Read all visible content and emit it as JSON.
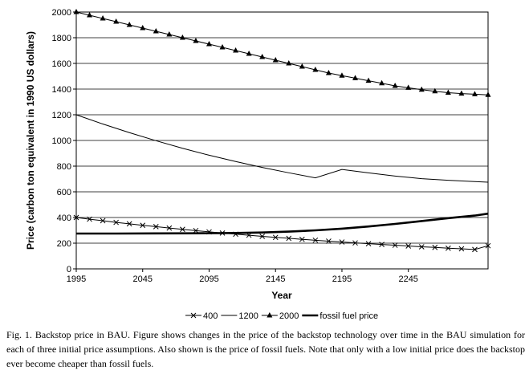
{
  "caption": "Fig. 1. Backstop price in BAU. Figure shows changes in the price of the backstop technology over time in the BAU simulation for each of three initial price assumptions. Also shown is the price of fossil fuels. Note that only with a low initial price does the backstop ever become cheaper than fossil fuels.",
  "chart_data": {
    "type": "line",
    "xlabel": "Year",
    "ylabel": "Price (carbon ton equivalent in 1990 US dollars)",
    "xlim": [
      1995,
      2305
    ],
    "ylim": [
      0,
      2000
    ],
    "x_ticks": [
      "1995",
      "2045",
      "2095",
      "2145",
      "2195",
      "2245"
    ],
    "y_ticks": [
      "0",
      "200",
      "400",
      "600",
      "800",
      "1000",
      "1200",
      "1400",
      "1600",
      "1800",
      "2000"
    ],
    "grid": "horizontal",
    "legend_position": "bottom",
    "series": [
      {
        "name": "400",
        "marker": "x",
        "color": "#000000",
        "x": [
          1995,
          2005,
          2015,
          2025,
          2035,
          2045,
          2055,
          2065,
          2075,
          2085,
          2095,
          2105,
          2115,
          2125,
          2135,
          2145,
          2155,
          2165,
          2175,
          2185,
          2195,
          2205,
          2215,
          2225,
          2235,
          2245,
          2255,
          2265,
          2275,
          2285,
          2295,
          2305
        ],
        "values": [
          400,
          387,
          375,
          362,
          351,
          339,
          329,
          318,
          308,
          298,
          288,
          279,
          270,
          262,
          253,
          245,
          238,
          230,
          223,
          216,
          209,
          202,
          196,
          190,
          184,
          178,
          172,
          167,
          161,
          156,
          151,
          180
        ]
      },
      {
        "name": "1200",
        "marker": "none",
        "color": "#000000",
        "x": [
          1995,
          2015,
          2035,
          2055,
          2075,
          2095,
          2115,
          2135,
          2155,
          2175,
          2195,
          2215,
          2235,
          2255,
          2275,
          2295,
          2305
        ],
        "values": [
          1200,
          1128,
          1061,
          998,
          939,
          885,
          836,
          790,
          748,
          709,
          774,
          748,
          723,
          702,
          690,
          680,
          675
        ]
      },
      {
        "name": "2000",
        "marker": "triangle",
        "color": "#000000",
        "x": [
          1995,
          2005,
          2015,
          2025,
          2035,
          2045,
          2055,
          2065,
          2075,
          2085,
          2095,
          2105,
          2115,
          2125,
          2135,
          2145,
          2155,
          2165,
          2175,
          2185,
          2195,
          2205,
          2215,
          2225,
          2235,
          2245,
          2255,
          2265,
          2275,
          2285,
          2295,
          2305
        ],
        "values": [
          2000,
          1975,
          1950,
          1925,
          1900,
          1875,
          1850,
          1825,
          1800,
          1775,
          1750,
          1725,
          1700,
          1675,
          1650,
          1625,
          1600,
          1575,
          1550,
          1525,
          1505,
          1485,
          1465,
          1445,
          1425,
          1410,
          1395,
          1383,
          1372,
          1365,
          1360,
          1355
        ]
      },
      {
        "name": "fossil fuel price",
        "marker": "none",
        "color": "#000000",
        "x": [
          1995,
          2025,
          2055,
          2085,
          2115,
          2135,
          2155,
          2175,
          2195,
          2215,
          2235,
          2255,
          2275,
          2295,
          2305
        ],
        "values": [
          275,
          275,
          276,
          277,
          279,
          283,
          290,
          300,
          313,
          330,
          350,
          372,
          395,
          415,
          430
        ]
      }
    ]
  }
}
